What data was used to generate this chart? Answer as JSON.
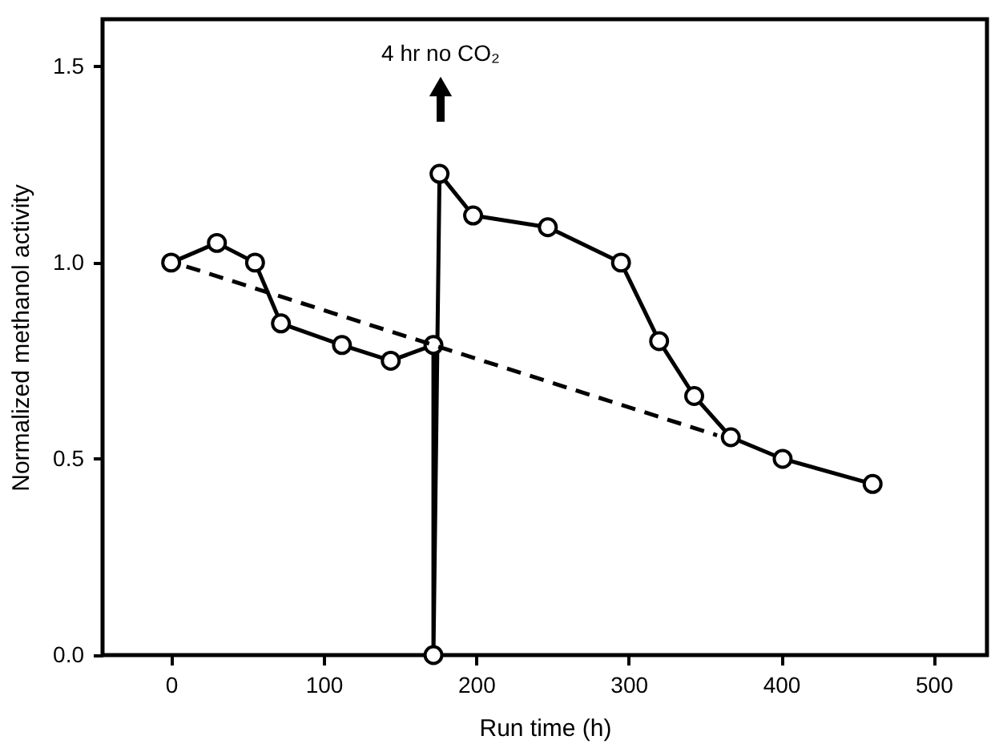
{
  "chart_data": {
    "type": "line",
    "xlabel": "Run time (h)",
    "ylabel": "Normalized methanol activity",
    "series": [
      {
        "color": "#000000",
        "marker": "circle",
        "line_style": "solid",
        "x": [
          0,
          30,
          55,
          72,
          112,
          144,
          172,
          172,
          176,
          198,
          247,
          295,
          320,
          343,
          367,
          401,
          460
        ],
        "values": [
          1.0,
          1.05,
          1.0,
          0.845,
          0.79,
          0.75,
          0.79,
          0.0,
          1.226,
          1.12,
          1.09,
          1.0,
          0.8,
          0.66,
          0.555,
          0.5,
          0.436
        ]
      },
      {
        "color": "#000000",
        "marker": "none",
        "line_style": "dashed",
        "x": [
          10,
          358
        ],
        "values": [
          0.99,
          0.56
        ]
      }
    ],
    "annotations": [
      "4 hr no CO₂"
    ],
    "xlim": [
      -45,
      535
    ],
    "xticks": [
      0,
      100,
      200,
      300,
      400,
      500
    ],
    "ylim": [
      0,
      1.62
    ],
    "yticks": [
      {
        "value": 0,
        "label": "0.0"
      },
      0.5,
      {
        "value": 1,
        "label": "1.0"
      },
      1.5
    ],
    "grid": false
  }
}
